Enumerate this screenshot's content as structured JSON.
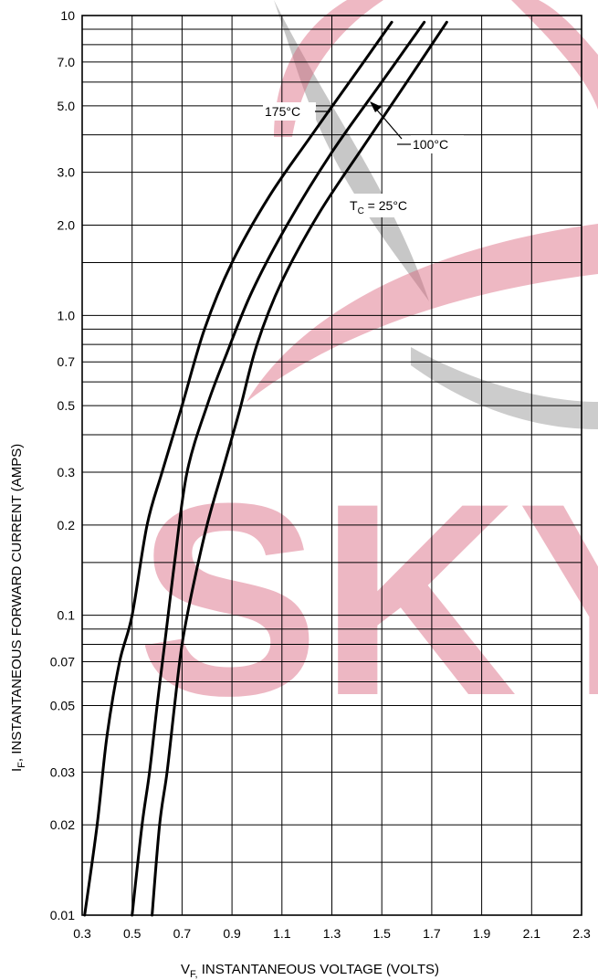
{
  "chart_data": {
    "type": "line",
    "title": "",
    "xlabel_main": "V",
    "xlabel_sub": "F,",
    "xlabel_rest": " INSTANTANEOUS VOLTAGE (VOLTS)",
    "ylabel_main": "I",
    "ylabel_sub": "F",
    "ylabel_rest": ", INSTANTANEOUS FORWARD CURRENT (AMPS)",
    "x_scale": "linear",
    "y_scale": "log",
    "xlim": [
      0.3,
      2.3
    ],
    "ylim": [
      0.01,
      10
    ],
    "grid": true,
    "x_ticks": [
      0.3,
      0.5,
      0.7,
      0.9,
      1.1,
      1.3,
      1.5,
      1.7,
      1.9,
      2.1,
      2.3
    ],
    "x_tick_labels": [
      "0.3",
      "0.5",
      "0.7",
      "0.9",
      "1.1",
      "1.3",
      "1.5",
      "1.7",
      "1.9",
      "2.1",
      "2.3"
    ],
    "y_ticks": [
      0.01,
      0.02,
      0.03,
      0.05,
      0.07,
      0.1,
      0.2,
      0.3,
      0.5,
      0.7,
      1.0,
      2.0,
      3.0,
      5.0,
      7.0,
      10
    ],
    "y_tick_labels": [
      "0.01",
      "0.02",
      "0.03",
      "0.05",
      "0.07",
      "0.1",
      "0.2",
      "0.3",
      "0.5",
      "0.7",
      "1.0",
      "2.0",
      "3.0",
      "5.0",
      "7.0",
      "10"
    ],
    "y_gridlines": [
      0.01,
      0.015,
      0.02,
      0.03,
      0.04,
      0.05,
      0.06,
      0.07,
      0.08,
      0.09,
      0.1,
      0.15,
      0.2,
      0.3,
      0.4,
      0.5,
      0.6,
      0.7,
      0.8,
      0.9,
      1.0,
      1.5,
      2.0,
      3.0,
      4.0,
      5.0,
      6.0,
      7.0,
      8.0,
      9.0,
      10
    ],
    "series": [
      {
        "name": "175°C",
        "points": [
          [
            0.31,
            0.01
          ],
          [
            0.36,
            0.02
          ],
          [
            0.4,
            0.04
          ],
          [
            0.45,
            0.07
          ],
          [
            0.5,
            0.1
          ],
          [
            0.56,
            0.2
          ],
          [
            0.62,
            0.3
          ],
          [
            0.7,
            0.5
          ],
          [
            0.79,
            0.9
          ],
          [
            0.9,
            1.5
          ],
          [
            1.05,
            2.5
          ],
          [
            1.22,
            4.0
          ],
          [
            1.4,
            6.5
          ],
          [
            1.54,
            9.5
          ]
        ]
      },
      {
        "name": "100°C",
        "points": [
          [
            0.5,
            0.01
          ],
          [
            0.54,
            0.02
          ],
          [
            0.57,
            0.03
          ],
          [
            0.6,
            0.05
          ],
          [
            0.63,
            0.08
          ],
          [
            0.67,
            0.15
          ],
          [
            0.72,
            0.3
          ],
          [
            0.8,
            0.5
          ],
          [
            0.88,
            0.75
          ],
          [
            0.98,
            1.2
          ],
          [
            1.12,
            2.0
          ],
          [
            1.3,
            3.5
          ],
          [
            1.5,
            6.0
          ],
          [
            1.67,
            9.5
          ]
        ]
      },
      {
        "name": "25°C",
        "points": [
          [
            0.58,
            0.01
          ],
          [
            0.61,
            0.02
          ],
          [
            0.64,
            0.03
          ],
          [
            0.67,
            0.05
          ],
          [
            0.7,
            0.08
          ],
          [
            0.74,
            0.12
          ],
          [
            0.8,
            0.2
          ],
          [
            0.86,
            0.3
          ],
          [
            0.93,
            0.48
          ],
          [
            1.0,
            0.8
          ],
          [
            1.1,
            1.3
          ],
          [
            1.25,
            2.2
          ],
          [
            1.43,
            3.7
          ],
          [
            1.6,
            6.0
          ],
          [
            1.76,
            9.5
          ]
        ]
      }
    ],
    "annotations": {
      "t175": "175°C",
      "t100": "100°C",
      "t25_main": "T",
      "t25_sub": "C",
      "t25_rest": " = 25°C"
    },
    "watermark_text": "SKY"
  }
}
